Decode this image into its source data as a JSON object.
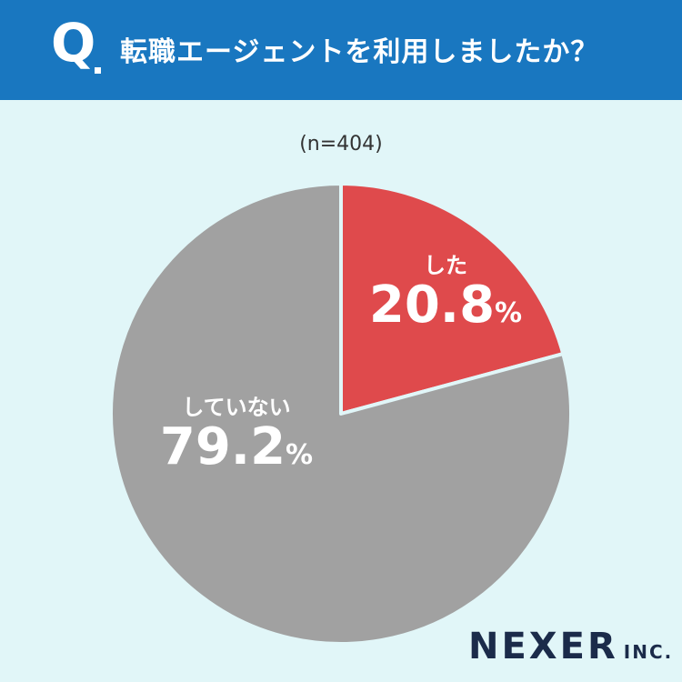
{
  "header": {
    "q_mark": "Q",
    "question": "転職エージェントを利用しましたか？"
  },
  "sample_size": "(n=404)",
  "colors": {
    "header_bg": "#1977c0",
    "page_bg": "#e1f6f8",
    "yes_slice": "#df4a4c",
    "no_slice": "#a1a1a1",
    "slice_border": "#e1f6f8"
  },
  "chart_data": {
    "type": "pie",
    "slices": [
      {
        "label": "した",
        "value": 20.8,
        "value_text": "20.8",
        "unit": "%",
        "color": "#df4a4c"
      },
      {
        "label": "していない",
        "value": 79.2,
        "value_text": "79.2",
        "unit": "%",
        "color": "#a1a1a1"
      }
    ],
    "start_angle": "12 o'clock",
    "direction": "clockwise"
  },
  "branding": {
    "logo_main": "NEXER",
    "logo_suffix": "INC."
  }
}
